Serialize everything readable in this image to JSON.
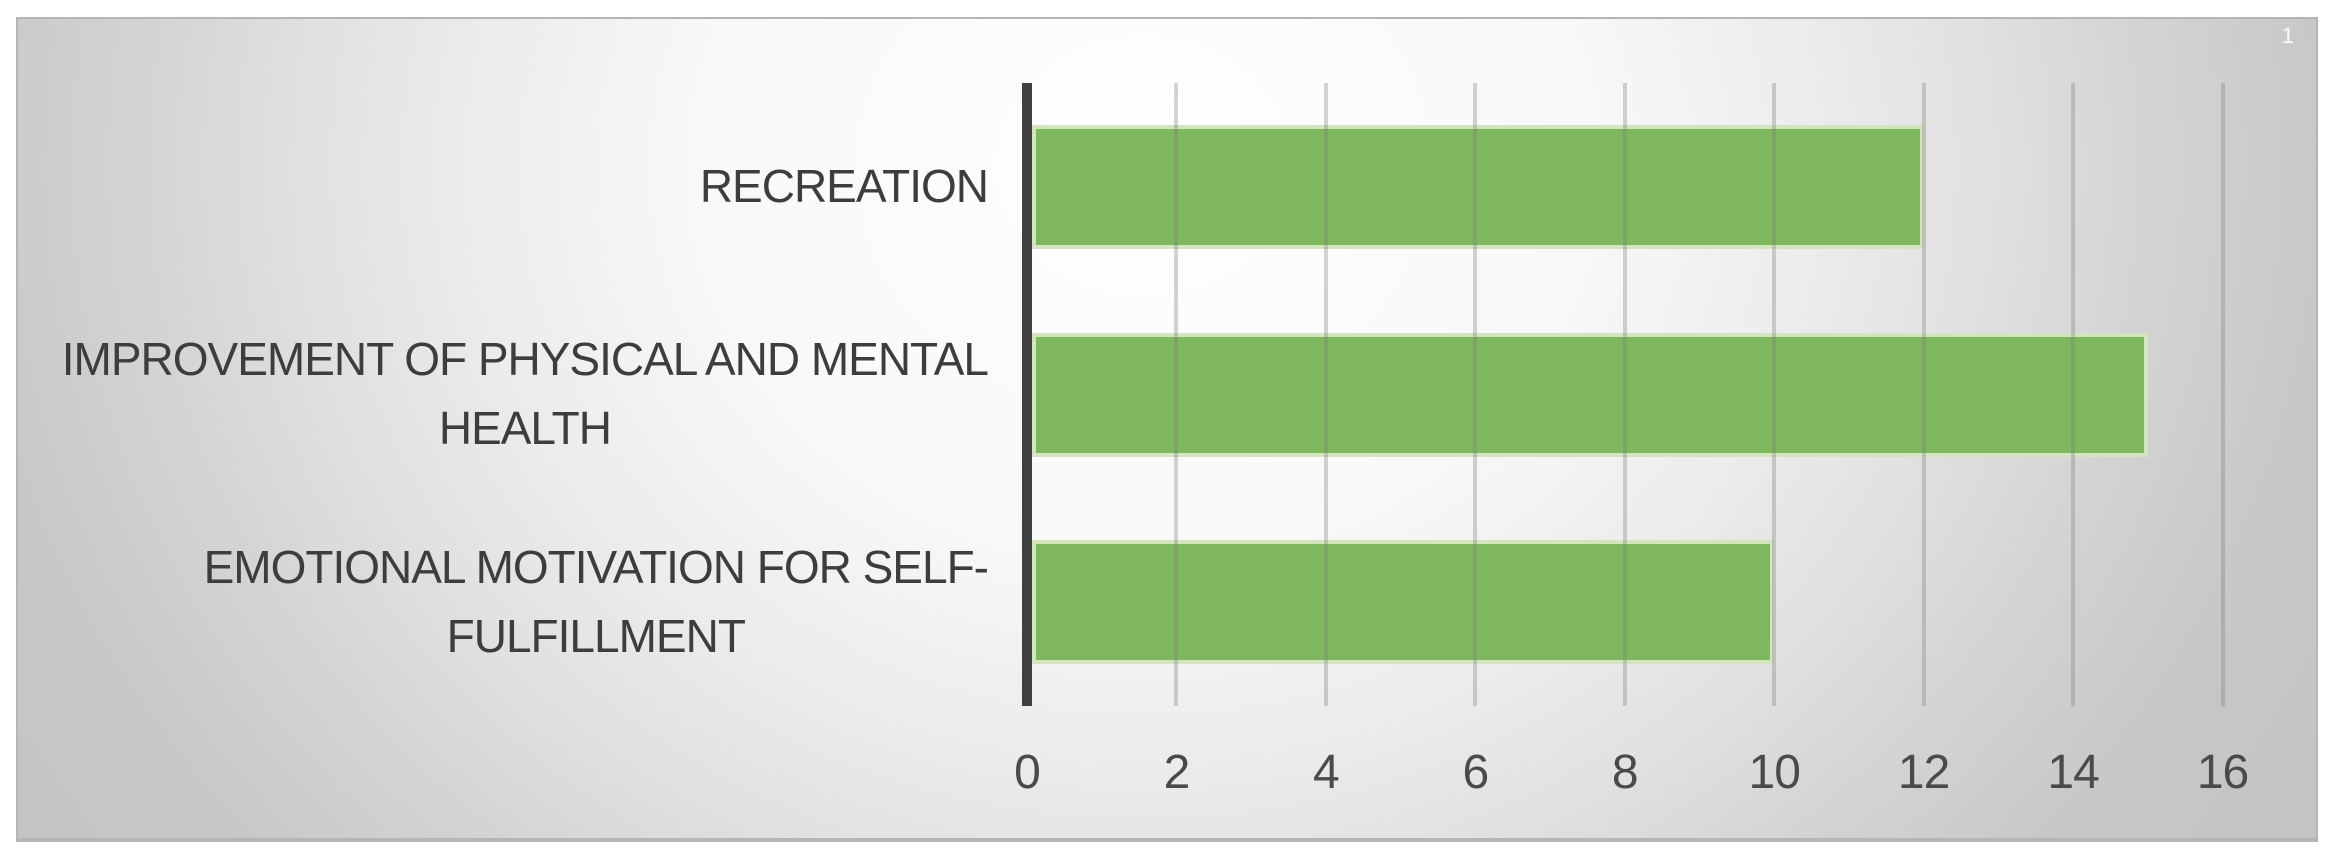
{
  "page": {
    "slide_number": "1"
  },
  "chart_data": {
    "type": "bar",
    "orientation": "horizontal",
    "title": "",
    "xlabel": "",
    "ylabel": "",
    "categories": [
      "RECREATION",
      "IMPROVEMENT OF PHYSICAL AND MENTAL HEALTH",
      "EMOTIONAL MOTIVATION FOR SELF-FULFILLMENT"
    ],
    "category_label_lines": [
      [
        "RECREATION"
      ],
      [
        "IMPROVEMENT OF PHYSICAL AND MENTAL",
        "HEALTH"
      ],
      [
        "EMOTIONAL MOTIVATION FOR SELF-",
        "FULFILLMENT"
      ]
    ],
    "values": [
      12,
      15,
      10
    ],
    "x_ticks": [
      0,
      2,
      4,
      6,
      8,
      10,
      12,
      14,
      16
    ],
    "xlim": [
      0,
      16
    ],
    "grid": true,
    "legend_position": "none",
    "colors": {
      "bar_fill": "#7fb75f",
      "bar_border": "#d2e5bd",
      "axis_line": "#3f3f3f",
      "gridline": "rgba(122,122,122,0.32)",
      "category_text": "#3d3d3d",
      "tick_text": "#4a4a4a"
    }
  }
}
